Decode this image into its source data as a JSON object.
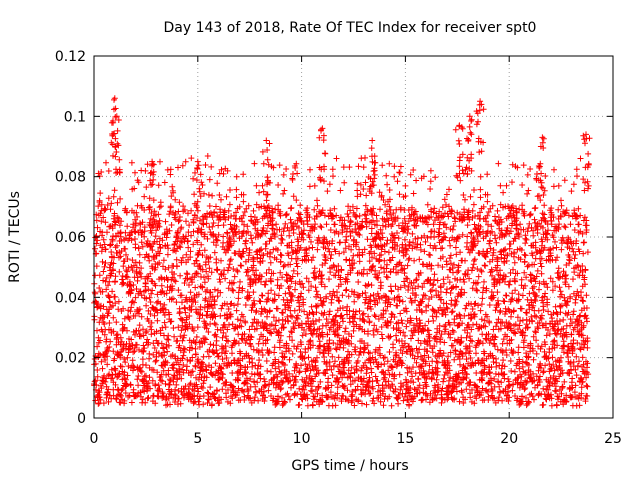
{
  "chart_data": {
    "type": "scatter",
    "title": "Day 143 of 2018, Rate Of TEC Index for receiver spt0",
    "xlabel": "GPS time / hours",
    "ylabel": "ROTI / TECUs",
    "xlim": [
      0,
      25
    ],
    "ylim": [
      0,
      0.12
    ],
    "x_ticks": [
      0,
      5,
      10,
      15,
      20,
      25
    ],
    "x_tick_labels": [
      "0",
      "5",
      "10",
      "15",
      "20",
      "25"
    ],
    "y_ticks": [
      0,
      0.02,
      0.04,
      0.06,
      0.08,
      0.1,
      0.12
    ],
    "y_tick_labels": [
      "0",
      "0.02",
      "0.04",
      "0.06",
      "0.08",
      "0.1",
      "0.12"
    ],
    "grid": true,
    "marker": "plus",
    "color": "#ff0000",
    "series": [
      {
        "name": "ROTI",
        "x_range": [
          0,
          23.8
        ],
        "y_typical_range": [
          0.005,
          0.07
        ],
        "y_max": 0.106,
        "peaks": [
          {
            "x": 1.0,
            "y": 0.106
          },
          {
            "x": 1.1,
            "y": 0.1
          },
          {
            "x": 11.0,
            "y": 0.096
          },
          {
            "x": 13.4,
            "y": 0.092
          },
          {
            "x": 17.6,
            "y": 0.097
          },
          {
            "x": 18.1,
            "y": 0.1
          },
          {
            "x": 18.6,
            "y": 0.105
          },
          {
            "x": 21.6,
            "y": 0.093
          },
          {
            "x": 23.7,
            "y": 0.094
          },
          {
            "x": 8.3,
            "y": 0.092
          },
          {
            "x": 5.0,
            "y": 0.085
          },
          {
            "x": 2.8,
            "y": 0.085
          }
        ]
      }
    ]
  }
}
